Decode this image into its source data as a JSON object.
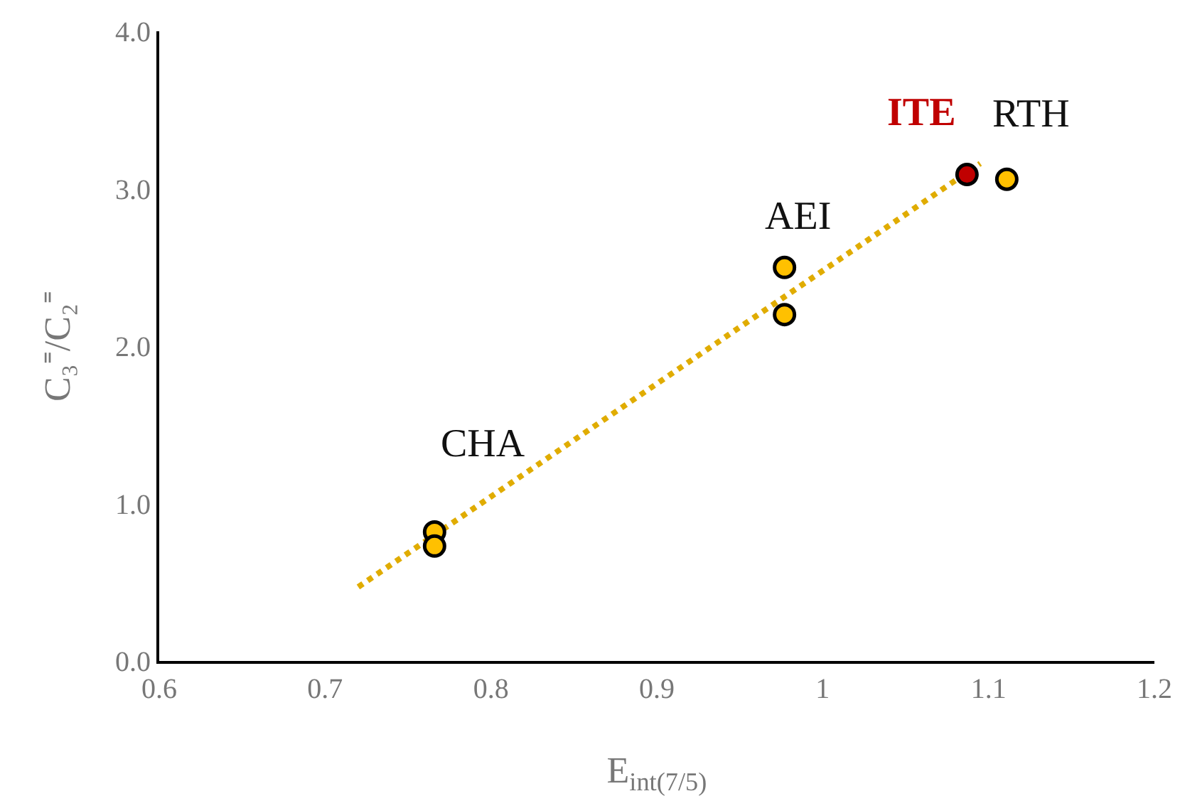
{
  "chart_data": {
    "type": "scatter",
    "xlabel": "E$_{int(7/5)}$",
    "ylabel": "C₃⁼/C₂⁼",
    "xlim": [
      0.6,
      1.2
    ],
    "xticks": [
      0.6,
      0.7,
      0.8,
      0.9,
      1,
      1.1,
      1.2
    ],
    "ylim": [
      0,
      4
    ],
    "yticks": [
      {
        "value": 0,
        "label": "0.0"
      },
      {
        "value": 1,
        "label": "1.0"
      },
      {
        "value": 2,
        "label": "2.0"
      },
      {
        "value": 3,
        "label": "3.0"
      },
      {
        "value": 4,
        "label": "4.0"
      }
    ],
    "grid": false,
    "marker": "circle",
    "series": [
      {
        "type": "line",
        "color": "#e0ac00",
        "line_style": "dotted",
        "marker": "none",
        "x": [
          0.72,
          1.095
        ],
        "values": [
          0.47,
          3.16
        ]
      },
      {
        "name": "CHA",
        "color": "#ffc000",
        "x": [
          0.766,
          0.766
        ],
        "values": [
          0.82,
          0.73
        ]
      },
      {
        "name": "AEI",
        "color": "#ffc000",
        "x": [
          0.977,
          0.977
        ],
        "values": [
          2.5,
          2.2
        ]
      },
      {
        "name": "RTH",
        "color": "#ffc000",
        "x": [
          1.111
        ],
        "values": [
          3.06
        ]
      },
      {
        "name": "ITE",
        "color": "#c00000",
        "x": [
          1.087
        ],
        "values": [
          3.09
        ]
      }
    ]
  }
}
